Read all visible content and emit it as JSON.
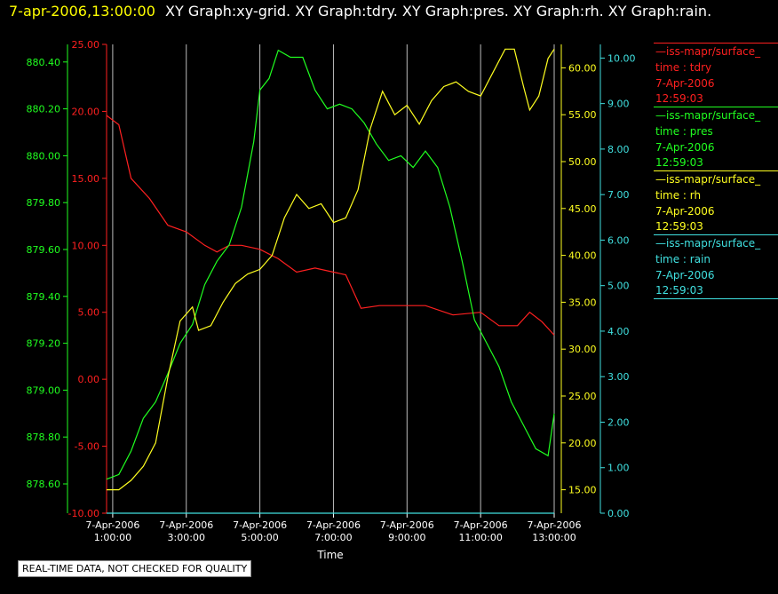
{
  "title": {
    "datetime": "7-apr-2006,13:00:00",
    "graphs": "XY Graph:xy-grid.  XY Graph:tdry.  XY Graph:pres.  XY Graph:rh.  XY Graph:rain."
  },
  "colors": {
    "tdry": "#ff2020",
    "pres": "#20ff20",
    "rh": "#ffff20",
    "rain": "#40e0e0",
    "grid": "#bbbbbb"
  },
  "legend": [
    {
      "name": "—iss-mapr/surface_",
      "var": "time : tdry",
      "date": "7-Apr-2006",
      "time": "12:59:03",
      "color": "#ff2020"
    },
    {
      "name": "—iss-mapr/surface_",
      "var": "time : pres",
      "date": "7-Apr-2006",
      "time": "12:59:03",
      "color": "#20ff20"
    },
    {
      "name": "—iss-mapr/surface_",
      "var": "time : rh",
      "date": "7-Apr-2006",
      "time": "12:59:03",
      "color": "#ffff20"
    },
    {
      "name": "—iss-mapr/surface_",
      "var": "time : rain",
      "date": "7-Apr-2006",
      "time": "12:59:03",
      "color": "#40e0e0"
    }
  ],
  "note": "REAL-TIME DATA, NOT CHECKED FOR QUALITY",
  "chart_data": {
    "type": "line",
    "xlabel": "Time",
    "x_range": [
      "2006-04-07 00:50",
      "2006-04-07 13:00"
    ],
    "x_ticks": [
      {
        "t": "2006-04-07 01:00",
        "l1": "7-Apr-2006",
        "l2": "1:00:00"
      },
      {
        "t": "2006-04-07 03:00",
        "l1": "7-Apr-2006",
        "l2": "3:00:00"
      },
      {
        "t": "2006-04-07 05:00",
        "l1": "7-Apr-2006",
        "l2": "5:00:00"
      },
      {
        "t": "2006-04-07 07:00",
        "l1": "7-Apr-2006",
        "l2": "7:00:00"
      },
      {
        "t": "2006-04-07 09:00",
        "l1": "7-Apr-2006",
        "l2": "9:00:00"
      },
      {
        "t": "2006-04-07 11:00",
        "l1": "7-Apr-2006",
        "l2": "11:00:00"
      },
      {
        "t": "2006-04-07 13:00",
        "l1": "7-Apr-2006",
        "l2": "13:00:00"
      }
    ],
    "grid": "vertical lines at x ticks",
    "axes": {
      "tdry": {
        "range": [
          -10,
          25
        ],
        "ticks": [
          "25.00",
          "20.00",
          "15.00",
          "10.00",
          "5.00",
          "0.00",
          "-5.00",
          "-10.00"
        ]
      },
      "pres": {
        "range": [
          878.475,
          880.475
        ],
        "ticks": [
          "880.40",
          "880.20",
          "880.00",
          "879.80",
          "879.60",
          "879.40",
          "879.20",
          "879.00",
          "878.80",
          "878.60"
        ]
      },
      "rh": {
        "range": [
          12.5,
          62.5
        ],
        "ticks": [
          "60.00",
          "55.00",
          "50.00",
          "45.00",
          "40.00",
          "35.00",
          "30.00",
          "25.00",
          "20.00",
          "15.00"
        ]
      },
      "rain": {
        "range": [
          0,
          10.3
        ],
        "ticks": [
          "10.00",
          "9.00",
          "8.00",
          "7.00",
          "6.00",
          "5.00",
          "4.00",
          "3.00",
          "2.00",
          "1.00",
          "0.00"
        ]
      }
    },
    "series": [
      {
        "name": "tdry",
        "axis": "tdry",
        "color": "#ff2020",
        "points": [
          [
            "2006-04-07 00:50",
            19.7
          ],
          [
            "2006-04-07 01:10",
            19.0
          ],
          [
            "2006-04-07 01:30",
            15.0
          ],
          [
            "2006-04-07 02:00",
            13.5
          ],
          [
            "2006-04-07 02:30",
            11.5
          ],
          [
            "2006-04-07 03:00",
            11.0
          ],
          [
            "2006-04-07 03:30",
            10.0
          ],
          [
            "2006-04-07 03:50",
            9.5
          ],
          [
            "2006-04-07 04:10",
            10.0
          ],
          [
            "2006-04-07 04:30",
            10.0
          ],
          [
            "2006-04-07 05:00",
            9.7
          ],
          [
            "2006-04-07 05:30",
            9.0
          ],
          [
            "2006-04-07 06:00",
            8.0
          ],
          [
            "2006-04-07 06:30",
            8.3
          ],
          [
            "2006-04-07 07:00",
            8.0
          ],
          [
            "2006-04-07 07:20",
            7.8
          ],
          [
            "2006-04-07 07:45",
            5.3
          ],
          [
            "2006-04-07 08:15",
            5.5
          ],
          [
            "2006-04-07 09:00",
            5.5
          ],
          [
            "2006-04-07 09:30",
            5.5
          ],
          [
            "2006-04-07 10:15",
            4.8
          ],
          [
            "2006-04-07 11:00",
            5.0
          ],
          [
            "2006-04-07 11:30",
            4.0
          ],
          [
            "2006-04-07 12:00",
            4.0
          ],
          [
            "2006-04-07 12:20",
            5.0
          ],
          [
            "2006-04-07 12:40",
            4.3
          ],
          [
            "2006-04-07 13:00",
            3.3
          ]
        ]
      },
      {
        "name": "pres",
        "axis": "pres",
        "color": "#20ff20",
        "points": [
          [
            "2006-04-07 00:50",
            878.62
          ],
          [
            "2006-04-07 01:10",
            878.64
          ],
          [
            "2006-04-07 01:30",
            878.74
          ],
          [
            "2006-04-07 01:50",
            878.88
          ],
          [
            "2006-04-07 02:10",
            878.95
          ],
          [
            "2006-04-07 02:30",
            879.07
          ],
          [
            "2006-04-07 02:50",
            879.2
          ],
          [
            "2006-04-07 03:10",
            879.28
          ],
          [
            "2006-04-07 03:30",
            879.45
          ],
          [
            "2006-04-07 03:50",
            879.55
          ],
          [
            "2006-04-07 04:10",
            879.62
          ],
          [
            "2006-04-07 04:30",
            879.78
          ],
          [
            "2006-04-07 04:50",
            880.06
          ],
          [
            "2006-04-07 05:00",
            880.28
          ],
          [
            "2006-04-07 05:15",
            880.33
          ],
          [
            "2006-04-07 05:30",
            880.45
          ],
          [
            "2006-04-07 05:50",
            880.42
          ],
          [
            "2006-04-07 06:10",
            880.42
          ],
          [
            "2006-04-07 06:30",
            880.28
          ],
          [
            "2006-04-07 06:50",
            880.2
          ],
          [
            "2006-04-07 07:10",
            880.22
          ],
          [
            "2006-04-07 07:30",
            880.2
          ],
          [
            "2006-04-07 07:50",
            880.14
          ],
          [
            "2006-04-07 08:10",
            880.05
          ],
          [
            "2006-04-07 08:30",
            879.98
          ],
          [
            "2006-04-07 08:50",
            880.0
          ],
          [
            "2006-04-07 09:10",
            879.95
          ],
          [
            "2006-04-07 09:30",
            880.02
          ],
          [
            "2006-04-07 09:50",
            879.95
          ],
          [
            "2006-04-07 10:10",
            879.78
          ],
          [
            "2006-04-07 10:30",
            879.55
          ],
          [
            "2006-04-07 10:50",
            879.3
          ],
          [
            "2006-04-07 11:10",
            879.2
          ],
          [
            "2006-04-07 11:30",
            879.1
          ],
          [
            "2006-04-07 11:50",
            878.95
          ],
          [
            "2006-04-07 12:10",
            878.85
          ],
          [
            "2006-04-07 12:30",
            878.75
          ],
          [
            "2006-04-07 12:50",
            878.72
          ],
          [
            "2006-04-07 13:00",
            878.9
          ]
        ]
      },
      {
        "name": "rh",
        "axis": "rh",
        "color": "#ffff20",
        "points": [
          [
            "2006-04-07 00:50",
            15.0
          ],
          [
            "2006-04-07 01:10",
            15.0
          ],
          [
            "2006-04-07 01:30",
            16.0
          ],
          [
            "2006-04-07 01:50",
            17.5
          ],
          [
            "2006-04-07 02:10",
            20.0
          ],
          [
            "2006-04-07 02:30",
            27.0
          ],
          [
            "2006-04-07 02:50",
            33.0
          ],
          [
            "2006-04-07 03:10",
            34.5
          ],
          [
            "2006-04-07 03:20",
            32.0
          ],
          [
            "2006-04-07 03:40",
            32.5
          ],
          [
            "2006-04-07 04:00",
            35.0
          ],
          [
            "2006-04-07 04:20",
            37.0
          ],
          [
            "2006-04-07 04:40",
            38.0
          ],
          [
            "2006-04-07 05:00",
            38.5
          ],
          [
            "2006-04-07 05:20",
            40.0
          ],
          [
            "2006-04-07 05:40",
            44.0
          ],
          [
            "2006-04-07 06:00",
            46.5
          ],
          [
            "2006-04-07 06:20",
            45.0
          ],
          [
            "2006-04-07 06:40",
            45.5
          ],
          [
            "2006-04-07 07:00",
            43.5
          ],
          [
            "2006-04-07 07:20",
            44.0
          ],
          [
            "2006-04-07 07:40",
            47.0
          ],
          [
            "2006-04-07 08:00",
            53.5
          ],
          [
            "2006-04-07 08:20",
            57.5
          ],
          [
            "2006-04-07 08:40",
            55.0
          ],
          [
            "2006-04-07 09:00",
            56.0
          ],
          [
            "2006-04-07 09:20",
            54.0
          ],
          [
            "2006-04-07 09:40",
            56.5
          ],
          [
            "2006-04-07 10:00",
            58.0
          ],
          [
            "2006-04-07 10:20",
            58.5
          ],
          [
            "2006-04-07 10:40",
            57.5
          ],
          [
            "2006-04-07 11:00",
            57.0
          ],
          [
            "2006-04-07 11:20",
            59.5
          ],
          [
            "2006-04-07 11:40",
            62.0
          ],
          [
            "2006-04-07 11:55",
            62.0
          ],
          [
            "2006-04-07 12:10",
            58.0
          ],
          [
            "2006-04-07 12:20",
            55.5
          ],
          [
            "2006-04-07 12:35",
            57.0
          ],
          [
            "2006-04-07 12:50",
            61.0
          ],
          [
            "2006-04-07 13:00",
            62.0
          ]
        ]
      },
      {
        "name": "rain",
        "axis": "rain",
        "color": "#40e0e0",
        "points": [
          [
            "2006-04-07 00:50",
            0.0
          ],
          [
            "2006-04-07 13:00",
            0.0
          ]
        ]
      }
    ]
  }
}
